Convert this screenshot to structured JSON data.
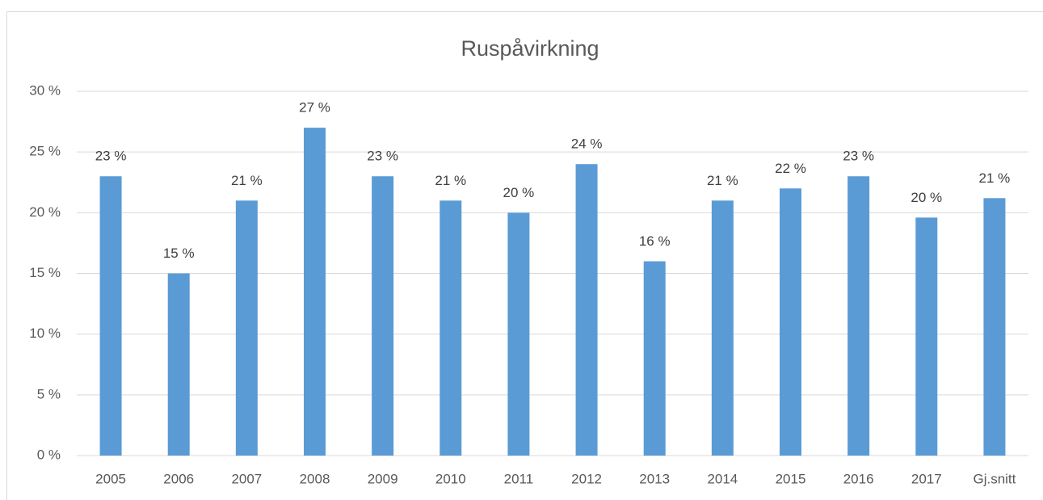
{
  "chart_data": {
    "type": "bar",
    "title": "Ruspåvirkning",
    "categories": [
      "2005",
      "2006",
      "2007",
      "2008",
      "2009",
      "2010",
      "2011",
      "2012",
      "2013",
      "2014",
      "2015",
      "2016",
      "2017",
      "Gj.snitt"
    ],
    "values": [
      23,
      15,
      21,
      27,
      23,
      21,
      20,
      24,
      16,
      21,
      22,
      23,
      19.6,
      21.2
    ],
    "value_labels": [
      "23 %",
      "15 %",
      "21 %",
      "27 %",
      "23 %",
      "21 %",
      "20 %",
      "24 %",
      "16 %",
      "21 %",
      "22 %",
      "23 %",
      "20 %",
      "21 %"
    ],
    "color": "#5b9bd5",
    "ylim": [
      0,
      30
    ],
    "yticks": [
      {
        "value": 0,
        "label": "0 %"
      },
      {
        "value": 5,
        "label": "5 %"
      },
      {
        "value": 10,
        "label": "10 %"
      },
      {
        "value": 15,
        "label": "15 %"
      },
      {
        "value": 20,
        "label": "20 %"
      },
      {
        "value": 25,
        "label": "25 %"
      },
      {
        "value": 30,
        "label": "30 %"
      }
    ],
    "grid": true
  }
}
